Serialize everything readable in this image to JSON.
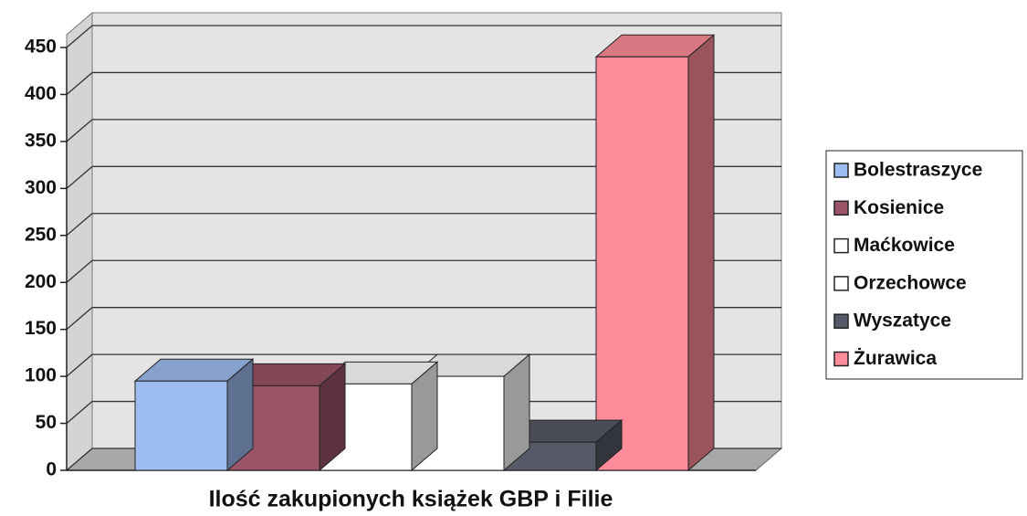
{
  "chart_data": {
    "type": "bar3d",
    "x_label": "Ilość zakupionych książek GBP i Filie",
    "categories": [
      null
    ],
    "series": [
      {
        "name": "Bolestraszyce",
        "color": "#9dbdf0",
        "values": [
          95
        ]
      },
      {
        "name": "Kosienice",
        "color": "#9a5468",
        "values": [
          90
        ]
      },
      {
        "name": "Maćkowice",
        "color": "#ffffff",
        "values": [
          92
        ]
      },
      {
        "name": "Orzechowce",
        "color": "#ffffff",
        "values": [
          100
        ]
      },
      {
        "name": "Wyszatyce",
        "color": "#565a68",
        "values": [
          30
        ]
      },
      {
        "name": "Żurawica",
        "color": "#ff8c9a",
        "values": [
          440
        ]
      }
    ],
    "ylim": [
      0,
      450
    ],
    "yticks": [
      0,
      50,
      100,
      150,
      200,
      250,
      300,
      350,
      400,
      450
    ],
    "grid": true,
    "legend": "right"
  }
}
